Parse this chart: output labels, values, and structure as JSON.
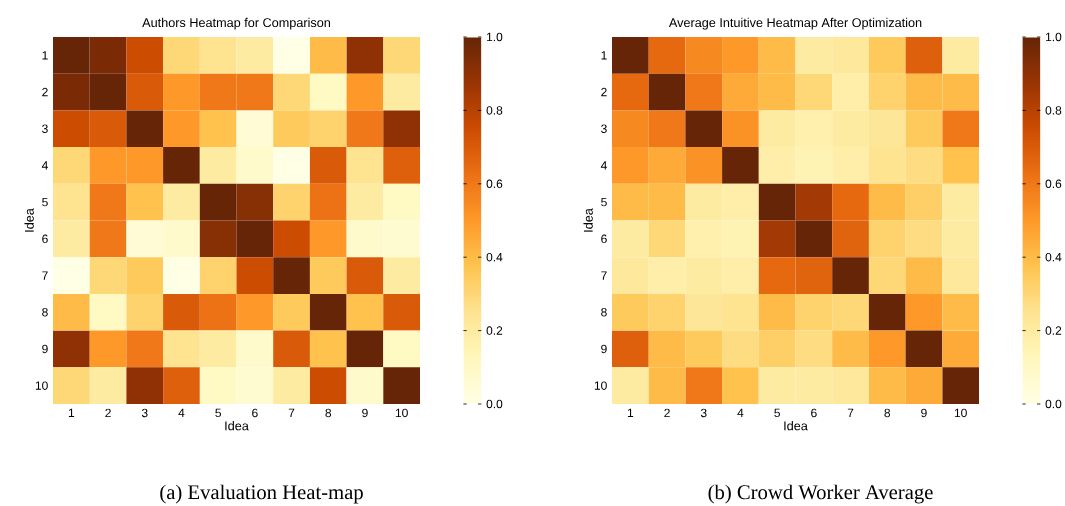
{
  "chart_data": [
    {
      "type": "heatmap",
      "title": "Authors Heatmap for Comparison",
      "xlabel": "Idea",
      "ylabel": "Idea",
      "categories": [
        "1",
        "2",
        "3",
        "4",
        "5",
        "6",
        "7",
        "8",
        "9",
        "10"
      ],
      "y_categories": [
        "1",
        "2",
        "3",
        "4",
        "5",
        "6",
        "7",
        "8",
        "9",
        "10"
      ],
      "cells": [
        [
          1,
          0.95,
          0.75,
          0.3,
          0.25,
          0.2,
          0.0,
          0.4,
          0.9,
          0.3
        ],
        [
          0.95,
          1,
          0.7,
          0.5,
          0.6,
          0.6,
          0.3,
          0.1,
          0.5,
          0.2
        ],
        [
          0.75,
          0.7,
          1,
          0.5,
          0.38,
          0.05,
          0.35,
          0.32,
          0.6,
          0.9
        ],
        [
          0.3,
          0.5,
          0.5,
          1,
          0.2,
          0.08,
          0.0,
          0.7,
          0.25,
          0.68
        ],
        [
          0.25,
          0.6,
          0.38,
          0.2,
          1,
          0.92,
          0.32,
          0.62,
          0.2,
          0.1
        ],
        [
          0.2,
          0.6,
          0.05,
          0.08,
          0.92,
          1,
          0.75,
          0.5,
          0.08,
          0.06
        ],
        [
          0.0,
          0.3,
          0.35,
          0.0,
          0.32,
          0.75,
          1,
          0.35,
          0.7,
          0.2
        ],
        [
          0.4,
          0.1,
          0.32,
          0.7,
          0.62,
          0.5,
          0.35,
          1,
          0.38,
          0.7
        ],
        [
          0.9,
          0.5,
          0.6,
          0.25,
          0.2,
          0.08,
          0.7,
          0.38,
          1,
          0.1
        ],
        [
          0.3,
          0.2,
          0.9,
          0.68,
          0.1,
          0.06,
          0.2,
          0.75,
          0.08,
          1
        ]
      ],
      "clim": [
        0,
        1
      ],
      "cticks": [
        {
          "value": 0,
          "label": "0.0"
        },
        {
          "value": 0.2,
          "label": "0.2"
        },
        {
          "value": 0.4,
          "label": "0.4"
        },
        {
          "value": 0.6,
          "label": "0.6"
        },
        {
          "value": 0.8,
          "label": "0.8"
        },
        {
          "value": 1,
          "label": "1.0"
        }
      ],
      "annotations": [
        "(a) Evaluation Heat-map"
      ]
    },
    {
      "type": "heatmap",
      "title": "Average Intuitive Heatmap After Optimization",
      "xlabel": "Idea",
      "ylabel": "Idea",
      "categories": [
        "1",
        "2",
        "3",
        "4",
        "5",
        "6",
        "7",
        "8",
        "9",
        "10"
      ],
      "y_categories": [
        "1",
        "2",
        "3",
        "4",
        "5",
        "6",
        "7",
        "8",
        "9",
        "10"
      ],
      "cells": [
        [
          1,
          0.65,
          0.55,
          0.5,
          0.4,
          0.2,
          0.22,
          0.35,
          0.68,
          0.2
        ],
        [
          0.65,
          1,
          0.6,
          0.45,
          0.4,
          0.3,
          0.18,
          0.32,
          0.4,
          0.4
        ],
        [
          0.55,
          0.6,
          1,
          0.52,
          0.2,
          0.17,
          0.2,
          0.23,
          0.35,
          0.6
        ],
        [
          0.5,
          0.45,
          0.52,
          1,
          0.18,
          0.15,
          0.18,
          0.25,
          0.28,
          0.38
        ],
        [
          0.4,
          0.4,
          0.2,
          0.18,
          1,
          0.85,
          0.65,
          0.4,
          0.33,
          0.2
        ],
        [
          0.2,
          0.3,
          0.17,
          0.15,
          0.85,
          1,
          0.67,
          0.32,
          0.28,
          0.2
        ],
        [
          0.22,
          0.18,
          0.2,
          0.18,
          0.65,
          0.67,
          1,
          0.3,
          0.4,
          0.22
        ],
        [
          0.35,
          0.32,
          0.23,
          0.25,
          0.4,
          0.32,
          0.3,
          1,
          0.5,
          0.4
        ],
        [
          0.68,
          0.4,
          0.35,
          0.28,
          0.33,
          0.28,
          0.4,
          0.5,
          1,
          0.45
        ],
        [
          0.2,
          0.4,
          0.6,
          0.38,
          0.2,
          0.2,
          0.22,
          0.4,
          0.45,
          1
        ]
      ],
      "clim": [
        0,
        1
      ],
      "cticks": [
        {
          "value": 0,
          "label": "0.0"
        },
        {
          "value": 0.2,
          "label": "0.2"
        },
        {
          "value": 0.4,
          "label": "0.4"
        },
        {
          "value": 0.6,
          "label": "0.6"
        },
        {
          "value": 0.8,
          "label": "0.8"
        },
        {
          "value": 1,
          "label": "1.0"
        }
      ],
      "annotations": [
        "(b) Crowd Worker Average"
      ]
    }
  ]
}
